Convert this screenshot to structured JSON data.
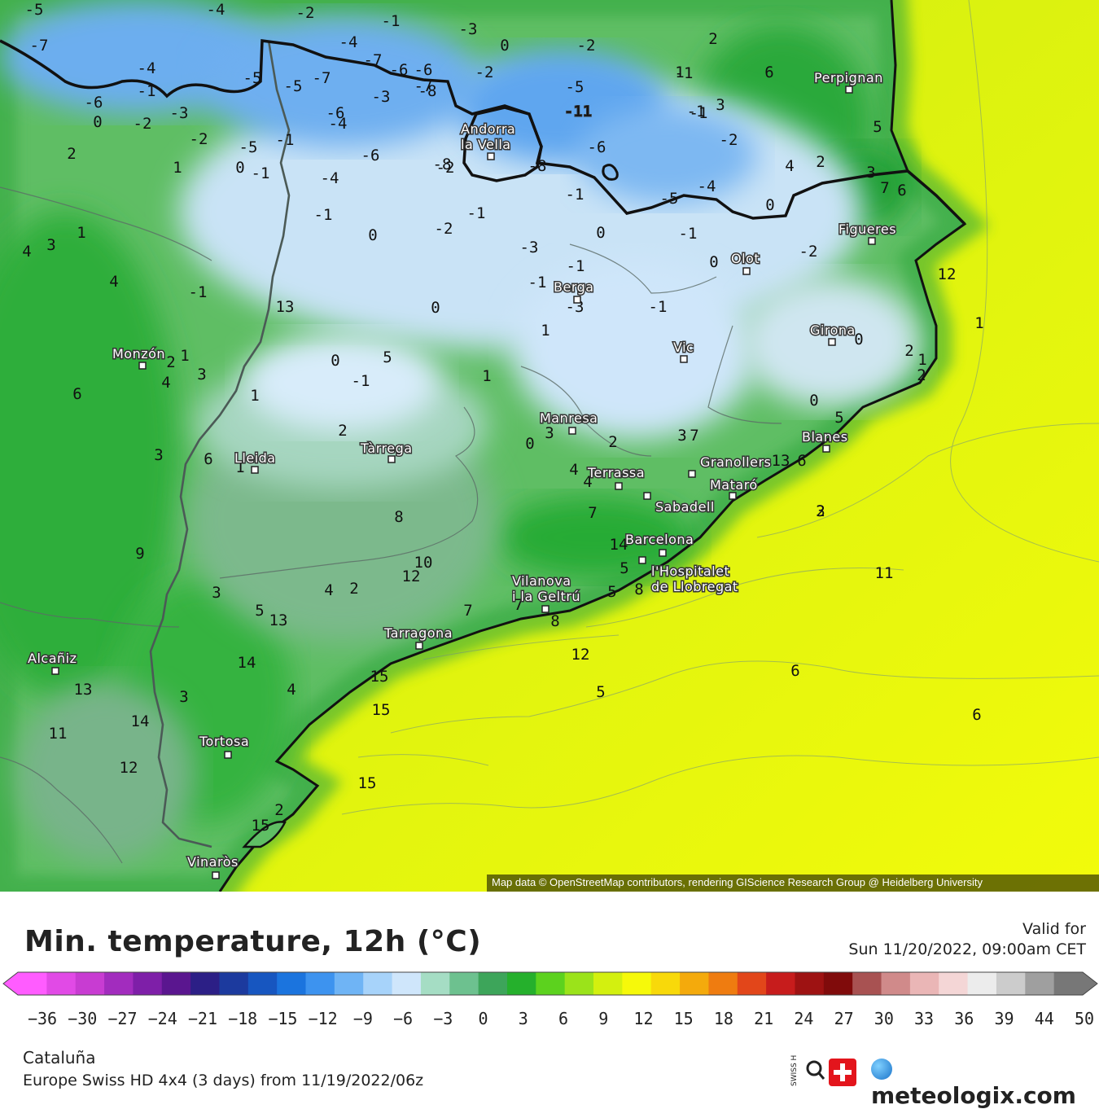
{
  "map": {
    "attribution": "Map data © OpenStreetMap contributors, rendering GIScience Research Group @ Heidelberg University",
    "cities": [
      {
        "name": "Perpignan"
      },
      {
        "name": "Andorra la Vella",
        "lines": [
          "Andorra",
          "la Vella"
        ]
      },
      {
        "name": "Figueres"
      },
      {
        "name": "Olot"
      },
      {
        "name": "Berga"
      },
      {
        "name": "Girona"
      },
      {
        "name": "Monzón"
      },
      {
        "name": "Vic"
      },
      {
        "name": "Manresa"
      },
      {
        "name": "Blanes"
      },
      {
        "name": "Lleida"
      },
      {
        "name": "Tàrrega"
      },
      {
        "name": "Terrassa"
      },
      {
        "name": "Granollers"
      },
      {
        "name": "Mataró"
      },
      {
        "name": "Sabadell"
      },
      {
        "name": "Barcelona"
      },
      {
        "name": "l'Hospitalet de Llobregat",
        "lines": [
          "l'Hospitalet",
          "de Llobregat"
        ]
      },
      {
        "name": "Vilanova i la Geltrú",
        "lines": [
          "Vilanova",
          "i la Geltrú"
        ]
      },
      {
        "name": "Tarragona"
      },
      {
        "name": "Alcañiz"
      },
      {
        "name": "Tortosa"
      },
      {
        "name": "Vinaròs"
      }
    ],
    "contour_values": [
      "-5",
      "-4",
      "-2",
      "-1",
      "-3",
      "-7",
      "-4",
      "-1",
      "0",
      "-2",
      "-5",
      "-5",
      "-7",
      "-7",
      "-6",
      "-6",
      "-7",
      "-2",
      "2",
      "6",
      "-4",
      "-1",
      "-11",
      "-8",
      "-3",
      "-5",
      "1",
      "-1",
      "3",
      "-6",
      "0",
      "-2",
      "-3",
      "-6",
      "-2",
      "2",
      "-1",
      "-8",
      "1",
      "-5",
      "-2",
      "0",
      "-1",
      "-4",
      "-6",
      "-4",
      "-8",
      "-6",
      "4",
      "2",
      "5",
      "3",
      "7",
      "6",
      "-1",
      "-1",
      "-5",
      "-4",
      "0",
      "-1",
      "-2",
      "-1",
      "0",
      "-2",
      "-3",
      "-1",
      "12",
      "4",
      "3",
      "1",
      "4",
      "-1",
      "-1",
      "0",
      "-1",
      "-3",
      "-1",
      "1",
      "0",
      "13",
      "-2",
      "0",
      "1",
      "0",
      "2",
      "1",
      "2",
      "3",
      "4",
      "5",
      "-1",
      "0",
      "1",
      "1",
      "1",
      "6",
      "0",
      "5",
      "2",
      "3",
      "2",
      "0",
      "2",
      "3",
      "7",
      "3",
      "6",
      "1",
      "4",
      "4",
      "6",
      "13",
      "7",
      "3",
      "8",
      "9",
      "10",
      "12",
      "14",
      "5",
      "8",
      "5",
      "11",
      "7",
      "4",
      "2",
      "7",
      "3",
      "5",
      "13",
      "8",
      "12",
      "14",
      "15",
      "15",
      "5",
      "6",
      "6",
      "13",
      "4",
      "3",
      "2",
      "14",
      "11",
      "12",
      "15",
      "2",
      "15"
    ],
    "colors": {
      "sea": "#ecf90d",
      "land_mid": "#45b84a",
      "cold": "#7fb7ee",
      "border": "#111111"
    }
  },
  "title": "Min. temperature, 12h (°C)",
  "valid": {
    "label": "Valid for",
    "date": "Sun 11/20/2022, 09:00am CET"
  },
  "legend": {
    "ticks": [
      "−36",
      "−30",
      "−27",
      "−24",
      "−21",
      "−18",
      "−15",
      "−12",
      "−9",
      "−6",
      "−3",
      "0",
      "3",
      "6",
      "9",
      "12",
      "15",
      "18",
      "21",
      "24",
      "27",
      "30",
      "33",
      "36",
      "39",
      "44",
      "50"
    ],
    "colors": [
      "#ff5cff",
      "#e14ae6",
      "#c83cd2",
      "#a22cbe",
      "#7e1fa8",
      "#5a168f",
      "#2c1f86",
      "#1c3a9e",
      "#1756c0",
      "#1b74de",
      "#3d93ef",
      "#6fb4f5",
      "#a7d3fa",
      "#cfe6fb",
      "#a5ddc4",
      "#6dc18f",
      "#3da55a",
      "#25b02c",
      "#5cd21e",
      "#9be31a",
      "#d3f00f",
      "#f6f90a",
      "#f8d90a",
      "#f4aa0c",
      "#ef7c10",
      "#e2461a",
      "#c71c1c",
      "#9e1212",
      "#800b0b",
      "#a85252",
      "#d08a8a",
      "#eab6b6",
      "#f4d6d6",
      "#ececec",
      "#cccccc",
      "#9f9f9f",
      "#777777"
    ]
  },
  "footer": {
    "region": "Cataluña",
    "model": "Europe Swiss HD 4x4 (3 days) from 11/19/2022/06z",
    "swiss_hd": "SWISS HD",
    "brand": "meteologix.com"
  }
}
